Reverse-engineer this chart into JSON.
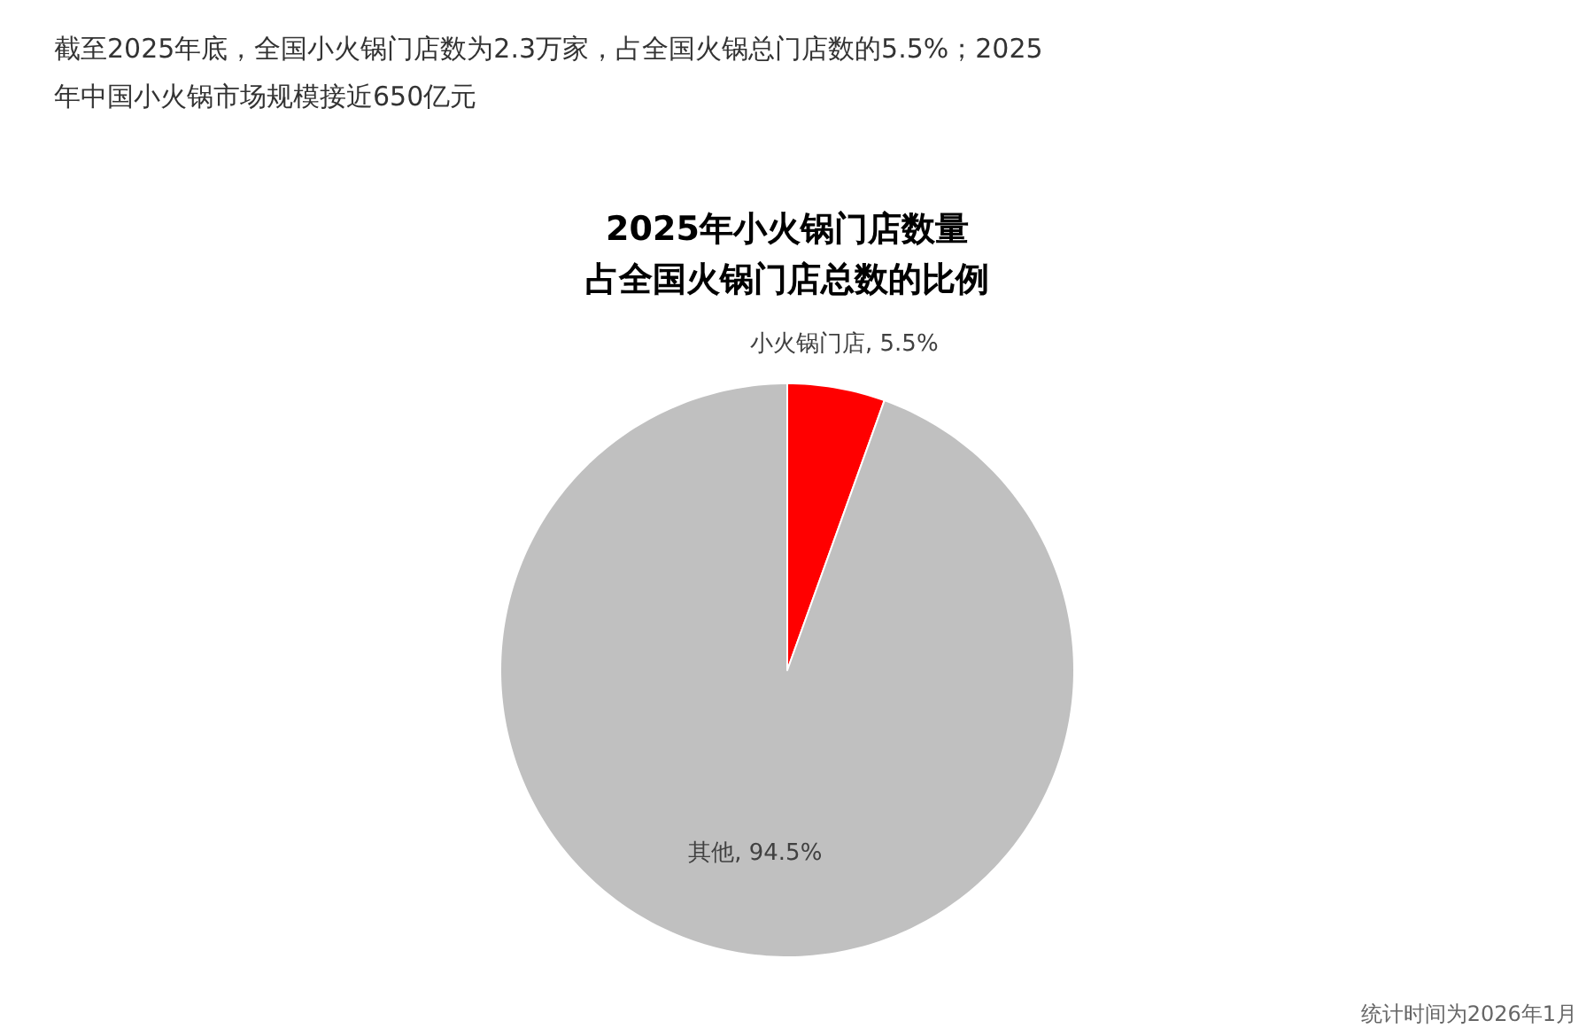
{
  "chart_data": {
    "type": "pie",
    "title": "截至2025年底，全国小火锅门店数为2.3万家，占全国火锅总门店数的5.5%；2025年中国小火锅市场规模接近650亿元",
    "subtitle": "2025年小火锅门店数量占全国火锅门店总数的比例",
    "categories": [
      "小火锅门店",
      "其他"
    ],
    "values": [
      5.5,
      94.5
    ],
    "colors": [
      "#ff0000",
      "#c0c0c0"
    ],
    "value_labels": [
      "5.5%",
      "94.5%"
    ],
    "annotations": [
      "统计时间为2026年1月"
    ]
  }
}
